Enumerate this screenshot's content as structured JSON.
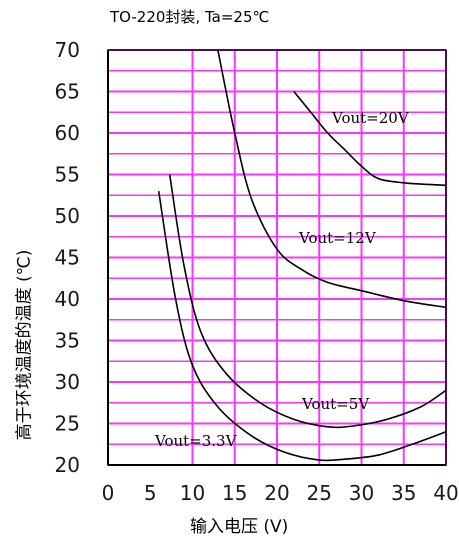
{
  "chart_data": {
    "type": "line",
    "title": "TO-220封装, Ta=25℃",
    "xlabel": "输入电压 (V)",
    "ylabel": "高于环境温度的温度 (℃)",
    "xlim": [
      0,
      40
    ],
    "ylim": [
      20,
      70
    ],
    "x_ticks": [
      "0",
      "5",
      "10",
      "15",
      "20",
      "25",
      "30",
      "35",
      "40"
    ],
    "y_ticks": [
      "20",
      "25",
      "30",
      "35",
      "40",
      "45",
      "50",
      "55",
      "60",
      "65",
      "70"
    ],
    "grid": true,
    "grid_color": "#ff33ff",
    "series": [
      {
        "name": "Vout=20V",
        "x": [
          22,
          24,
          26,
          28,
          30,
          32,
          35,
          38,
          40
        ],
        "y": [
          65,
          62.5,
          60,
          58,
          56,
          54.5,
          54,
          53.8,
          53.7
        ]
      },
      {
        "name": "Vout=12V",
        "x": [
          13,
          15,
          17,
          20,
          23,
          26,
          30,
          35,
          40
        ],
        "y": [
          70,
          60,
          52,
          46,
          43.5,
          42,
          41,
          39.8,
          39
        ]
      },
      {
        "name": "Vout=5V",
        "x": [
          7.3,
          9,
          11,
          14,
          18,
          22,
          26,
          29,
          33,
          37,
          40
        ],
        "y": [
          55,
          44,
          36,
          31,
          27.5,
          25.5,
          24.6,
          24.7,
          25.5,
          27,
          29
        ]
      },
      {
        "name": "Vout=3.3V",
        "x": [
          6,
          8,
          10,
          13,
          17,
          21,
          25,
          28,
          32,
          36,
          40
        ],
        "y": [
          53,
          40,
          32,
          27,
          23.5,
          21.5,
          20.6,
          20.7,
          21.2,
          22.5,
          24
        ]
      }
    ]
  }
}
